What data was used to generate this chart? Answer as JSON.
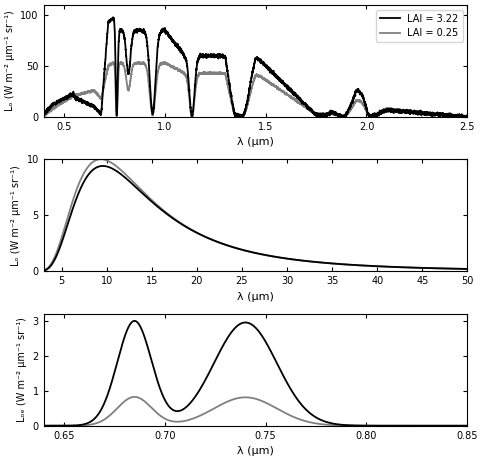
{
  "fig_width": 4.83,
  "fig_height": 4.61,
  "dpi": 100,
  "background_color": "white",
  "line_color_high": "black",
  "line_color_low": "#808080",
  "lw_high": 1.3,
  "lw_low": 1.3,
  "legend_labels": [
    "LAI = 3.22",
    "LAI = 0.25"
  ],
  "panel1": {
    "xlabel": "λ (μm)",
    "ylabel": "Lₒ (W m⁻² μm⁻¹ sr⁻¹)",
    "xlim": [
      0.4,
      2.5
    ],
    "ylim": [
      0,
      110
    ],
    "xticks": [
      0.5,
      1.0,
      1.5,
      2.0,
      2.5
    ],
    "yticks": [
      0,
      50,
      100
    ]
  },
  "panel2": {
    "xlabel": "λ (μm)",
    "ylabel": "Lₒ (W m⁻² μm⁻¹ sr⁻¹)",
    "xlim": [
      3,
      50
    ],
    "ylim": [
      0,
      10
    ],
    "xticks": [
      5,
      10,
      15,
      20,
      25,
      30,
      35,
      40,
      45,
      50
    ],
    "yticks": [
      0,
      5,
      10
    ]
  },
  "panel3": {
    "xlabel": "λ (μm)",
    "ylabel": "Lₒₑ (W m⁻² μm⁻¹ sr⁻¹)",
    "xlim": [
      0.64,
      0.85
    ],
    "ylim": [
      0,
      3.2
    ],
    "xticks": [
      0.65,
      0.7,
      0.75,
      0.8,
      0.85
    ],
    "yticks": [
      0,
      1,
      2,
      3
    ]
  }
}
